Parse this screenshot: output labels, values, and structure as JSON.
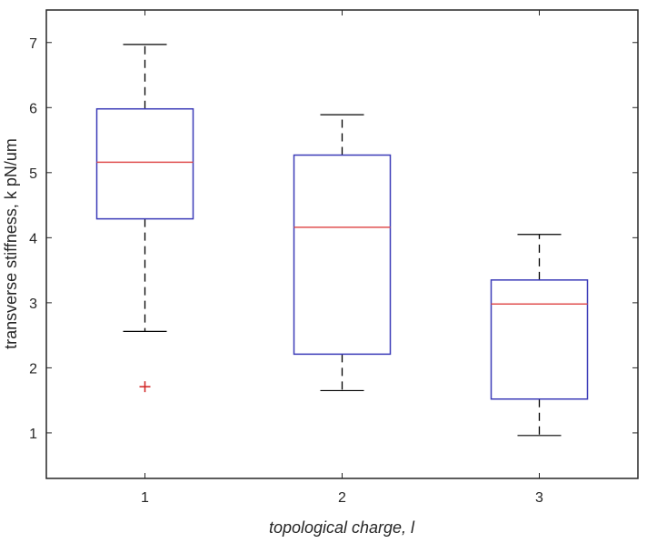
{
  "chart_data": {
    "type": "box",
    "title": "",
    "xlabel": "topological charge, l",
    "ylabel": "transverse stiffness, k pN/um",
    "categories": [
      "1",
      "2",
      "3"
    ],
    "ylim": [
      0.3,
      7.5
    ],
    "yticks": [
      1,
      2,
      3,
      4,
      5,
      6,
      7
    ],
    "grid": false,
    "legend": null,
    "boxes": [
      {
        "category": "1",
        "whisker_low": 2.56,
        "q1": 4.29,
        "median": 5.16,
        "q3": 5.98,
        "whisker_high": 6.97,
        "outliers": [
          1.71
        ]
      },
      {
        "category": "2",
        "whisker_low": 1.65,
        "q1": 2.21,
        "median": 4.16,
        "q3": 5.27,
        "whisker_high": 5.89,
        "outliers": []
      },
      {
        "category": "3",
        "whisker_low": 0.96,
        "q1": 1.52,
        "median": 2.98,
        "q3": 3.35,
        "whisker_high": 4.05,
        "outliers": []
      }
    ],
    "colors": {
      "box": "#3b3bb8",
      "median": "#e05050",
      "whisker": "#000000",
      "outlier": "#d02020",
      "axis": "#262626"
    }
  }
}
